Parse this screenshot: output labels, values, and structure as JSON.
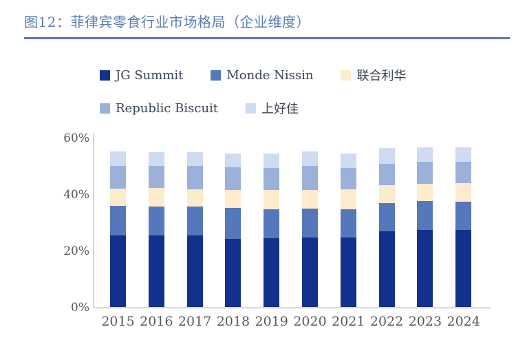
{
  "figure": {
    "title": "图12：菲律宾零食行业市场格局（企业维度）",
    "title_color": "#5b7cb2",
    "underline_color": "#5c76a8"
  },
  "axis": {
    "y_tick_labels": [
      "0%",
      "20%",
      "40%",
      "60%"
    ],
    "y_tick_values": [
      0,
      20,
      40,
      60
    ],
    "axis_line_color": "#d9d9d9",
    "tick_text_color": "#595959"
  },
  "chart_data": {
    "type": "bar",
    "stacked": true,
    "title": "图12：菲律宾零食行业市场格局（企业维度）",
    "xlabel": "",
    "ylabel": "",
    "ylim": [
      0,
      60
    ],
    "grid": false,
    "legend_position": "top",
    "categories": [
      "2015",
      "2016",
      "2017",
      "2018",
      "2019",
      "2020",
      "2021",
      "2022",
      "2023",
      "2024"
    ],
    "series": [
      {
        "name": "JG Summit",
        "color": "#12318c",
        "values": [
          25.6,
          25.6,
          25.6,
          24.4,
          24.6,
          24.9,
          24.9,
          26.9,
          27.4,
          27.4
        ]
      },
      {
        "name": "Monde Nissin",
        "color": "#5578bd",
        "values": [
          10.5,
          10.3,
          10.3,
          10.9,
          10.1,
          10.1,
          10.0,
          10.0,
          10.3,
          10.1
        ]
      },
      {
        "name": "联合利华",
        "color": "#fceccb",
        "values": [
          6.0,
          6.5,
          5.9,
          6.3,
          6.9,
          6.6,
          6.9,
          6.5,
          6.1,
          6.5
        ]
      },
      {
        "name": "Republic Biscuit",
        "color": "#9bb1da",
        "values": [
          8.1,
          7.8,
          8.4,
          8.1,
          7.8,
          8.6,
          7.6,
          7.6,
          7.8,
          7.6
        ]
      },
      {
        "name": "上好佳",
        "color": "#cedbf0",
        "values": [
          5.1,
          4.9,
          4.9,
          4.9,
          5.2,
          5.1,
          5.2,
          5.5,
          5.1,
          5.1
        ]
      }
    ]
  }
}
